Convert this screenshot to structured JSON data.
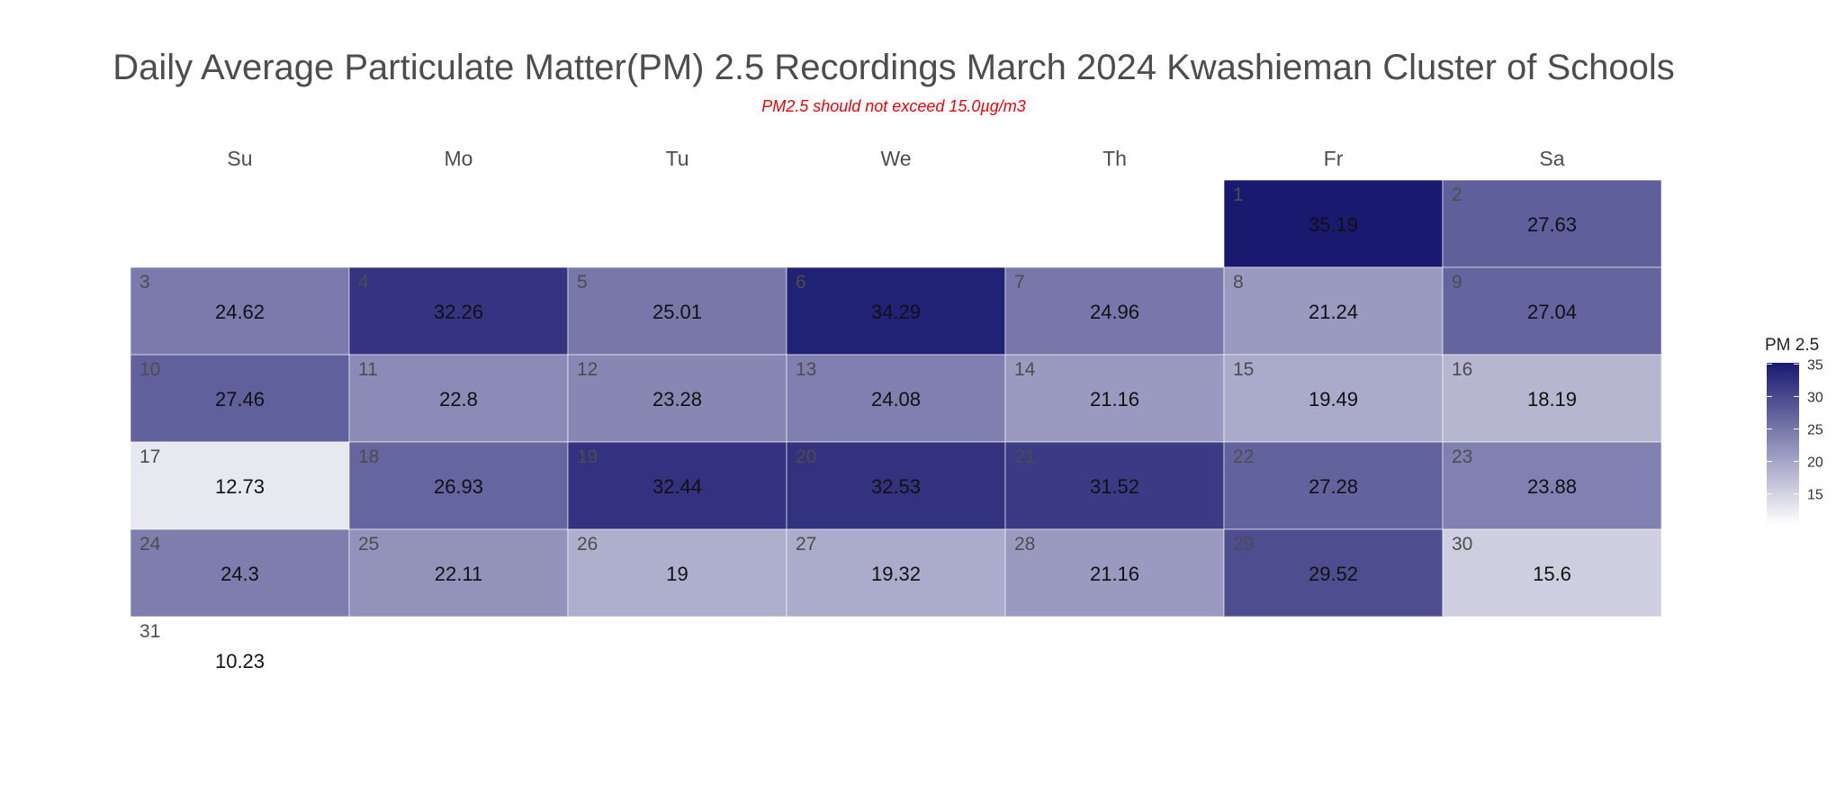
{
  "chart_data": {
    "type": "heatmap",
    "title": "Daily Average Particulate Matter(PM) 2.5 Recordings March 2024 Kwashieman Cluster of Schools",
    "subtitle": "PM2.5 should not exceed 15.0µg/m3",
    "subtitle_color": "#e8000b",
    "weekdays": [
      "Su",
      "Mo",
      "Tu",
      "We",
      "Th",
      "Fr",
      "Sa"
    ],
    "first_weekday_index": 5,
    "days": [
      1,
      2,
      3,
      4,
      5,
      6,
      7,
      8,
      9,
      10,
      11,
      12,
      13,
      14,
      15,
      16,
      17,
      18,
      19,
      20,
      21,
      22,
      23,
      24,
      25,
      26,
      27,
      28,
      29,
      30,
      31
    ],
    "value_labels": [
      "35.19",
      "27.63",
      "24.62",
      "32.26",
      "25.01",
      "34.29",
      "24.96",
      "21.24",
      "27.04",
      "27.46",
      "22.8",
      "23.28",
      "24.08",
      "21.16",
      "19.49",
      "18.19",
      "12.73",
      "26.93",
      "32.44",
      "32.53",
      "31.52",
      "27.28",
      "23.88",
      "24.3",
      "22.11",
      "19",
      "19.32",
      "21.16",
      "29.52",
      "15.6",
      "10.23"
    ],
    "values": [
      35.19,
      27.63,
      24.62,
      32.26,
      25.01,
      34.29,
      24.96,
      21.24,
      27.04,
      27.46,
      22.8,
      23.28,
      24.08,
      21.16,
      19.49,
      18.19,
      12.73,
      26.93,
      32.44,
      32.53,
      31.52,
      27.28,
      23.88,
      24.3,
      22.11,
      19,
      19.32,
      21.16,
      29.52,
      15.6,
      10.23
    ],
    "legend": {
      "title": "PM 2.5",
      "ticks": [
        15,
        20,
        25,
        30,
        35
      ],
      "low_color": "#ffffff",
      "high_color": "#191970",
      "range": [
        10.23,
        35.19
      ],
      "placement": "right"
    }
  }
}
